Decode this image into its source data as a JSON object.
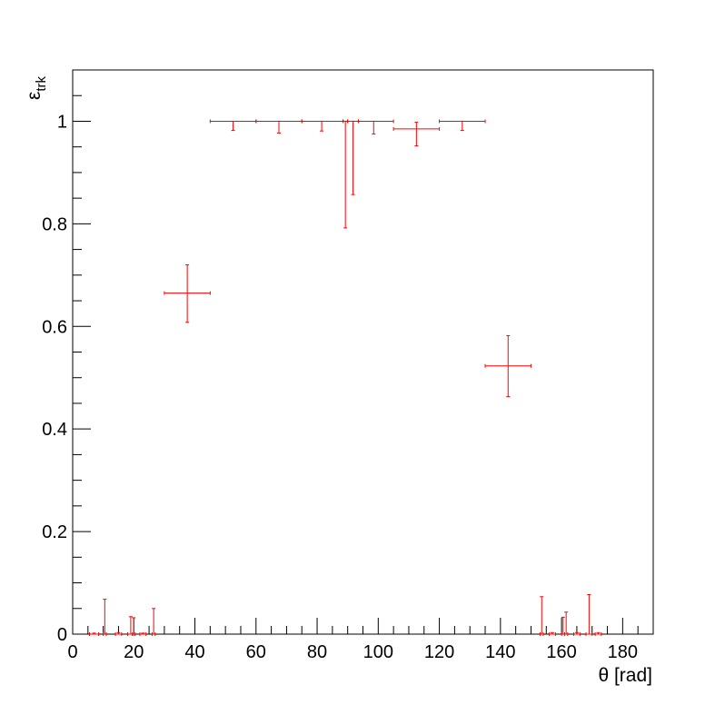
{
  "chart_data": {
    "type": "scatter",
    "xlabel": "θ [rad]",
    "ylabel_main": "ε",
    "ylabel_sub": "trk",
    "xlim": [
      0,
      190
    ],
    "ylim": [
      0,
      1.1
    ],
    "x_ticks": [
      0,
      20,
      40,
      60,
      80,
      100,
      120,
      140,
      160,
      180
    ],
    "x_tick_labels": [
      "0",
      "20",
      "40",
      "60",
      "80",
      "100",
      "120",
      "140",
      "160",
      "180"
    ],
    "y_ticks": [
      0,
      0.2,
      0.4,
      0.6,
      0.8,
      1
    ],
    "y_tick_labels": [
      "0",
      "0.2",
      "0.4",
      "0.6",
      "0.8",
      "1"
    ],
    "grid": false,
    "marker_color": "#ff0000",
    "points": [
      {
        "x": 7,
        "y": 0,
        "xlo": 5.5,
        "xhi": 8.5,
        "ylo": 0,
        "yhi": 0.002
      },
      {
        "x": 10.5,
        "y": 0,
        "xlo": 10,
        "xhi": 11,
        "ylo": 0,
        "yhi": 0.068
      },
      {
        "x": 15,
        "y": 0,
        "xlo": 14,
        "xhi": 16,
        "ylo": 0,
        "yhi": 0.003
      },
      {
        "x": 19,
        "y": 0,
        "xlo": 18,
        "xhi": 20,
        "ylo": 0,
        "yhi": 0.034
      },
      {
        "x": 20,
        "y": 0,
        "xlo": 19.5,
        "xhi": 20.5,
        "ylo": 0,
        "yhi": 0.032
      },
      {
        "x": 23,
        "y": 0,
        "xlo": 22,
        "xhi": 24,
        "ylo": 0,
        "yhi": 0.002
      },
      {
        "x": 26.5,
        "y": 0,
        "xlo": 26,
        "xhi": 27,
        "ylo": 0,
        "yhi": 0.05
      },
      {
        "x": 37.5,
        "y": 0.665,
        "xlo": 30,
        "xhi": 45,
        "ylo": 0.608,
        "yhi": 0.72
      },
      {
        "x": 52.5,
        "y": 1,
        "xlo": 45,
        "xhi": 60,
        "ylo": 0.982,
        "yhi": 1
      },
      {
        "x": 67.5,
        "y": 1,
        "xlo": 60,
        "xhi": 75,
        "ylo": 0.977,
        "yhi": 1
      },
      {
        "x": 81.5,
        "y": 1,
        "xlo": 75,
        "xhi": 88.5,
        "ylo": 0.981,
        "yhi": 1
      },
      {
        "x": 89.25,
        "y": 1,
        "xlo": 88.5,
        "xhi": 90,
        "ylo": 0.792,
        "yhi": 1
      },
      {
        "x": 91.75,
        "y": 1,
        "xlo": 90,
        "xhi": 93.5,
        "ylo": 0.857,
        "yhi": 1
      },
      {
        "x": 98.5,
        "y": 1,
        "xlo": 93.5,
        "xhi": 105,
        "ylo": 0.975,
        "yhi": 1
      },
      {
        "x": 112.5,
        "y": 0.985,
        "xlo": 105,
        "xhi": 120,
        "ylo": 0.952,
        "yhi": 0.998
      },
      {
        "x": 127.5,
        "y": 1,
        "xlo": 120,
        "xhi": 135,
        "ylo": 0.982,
        "yhi": 1
      },
      {
        "x": 142.5,
        "y": 0.523,
        "xlo": 135,
        "xhi": 150,
        "ylo": 0.463,
        "yhi": 0.582
      },
      {
        "x": 153.5,
        "y": 0,
        "xlo": 153,
        "xhi": 154,
        "ylo": 0,
        "yhi": 0.073
      },
      {
        "x": 157,
        "y": 0,
        "xlo": 156,
        "xhi": 158,
        "ylo": 0,
        "yhi": 0.003
      },
      {
        "x": 160.5,
        "y": 0,
        "xlo": 160,
        "xhi": 161,
        "ylo": 0,
        "yhi": 0.033
      },
      {
        "x": 161.5,
        "y": 0,
        "xlo": 161,
        "xhi": 162,
        "ylo": 0,
        "yhi": 0.043
      },
      {
        "x": 165,
        "y": 0,
        "xlo": 164,
        "xhi": 166,
        "ylo": 0,
        "yhi": 0.003
      },
      {
        "x": 169,
        "y": 0,
        "xlo": 168,
        "xhi": 170,
        "ylo": 0,
        "yhi": 0.077
      },
      {
        "x": 172,
        "y": 0,
        "xlo": 171,
        "xhi": 173,
        "ylo": 0,
        "yhi": 0.003
      }
    ]
  }
}
